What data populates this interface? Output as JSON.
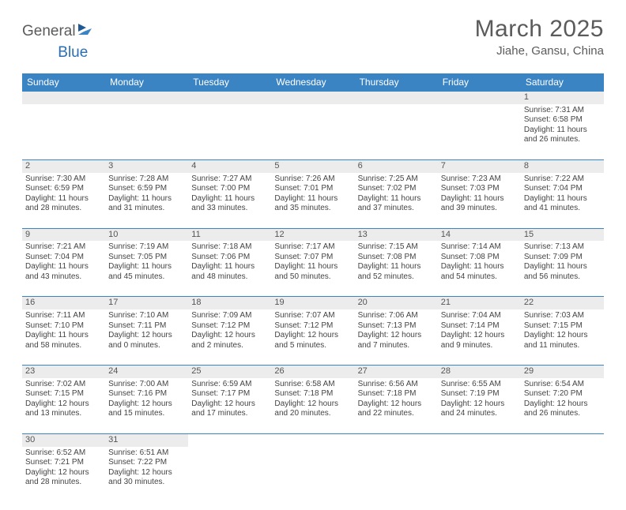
{
  "logo": {
    "part1": "General",
    "part2": "Blue"
  },
  "title": "March 2025",
  "location": "Jiahe, Gansu, China",
  "colors": {
    "header_bg": "#3b84c4",
    "header_text": "#ffffff",
    "border": "#3b84c4",
    "daynum_bg": "#ececec",
    "text": "#444444",
    "title_text": "#5b5b5b",
    "logo_gray": "#5b5b5b",
    "logo_blue": "#2a6fb5"
  },
  "typography": {
    "title_fontsize": 30,
    "location_fontsize": 15,
    "header_fontsize": 12,
    "cell_fontsize": 10,
    "daynum_fontsize": 11
  },
  "dayNames": [
    "Sunday",
    "Monday",
    "Tuesday",
    "Wednesday",
    "Thursday",
    "Friday",
    "Saturday"
  ],
  "weeks": [
    [
      null,
      null,
      null,
      null,
      null,
      null,
      {
        "n": "1",
        "sr": "Sunrise: 7:31 AM",
        "ss": "Sunset: 6:58 PM",
        "dl": "Daylight: 11 hours and 26 minutes."
      }
    ],
    [
      {
        "n": "2",
        "sr": "Sunrise: 7:30 AM",
        "ss": "Sunset: 6:59 PM",
        "dl": "Daylight: 11 hours and 28 minutes."
      },
      {
        "n": "3",
        "sr": "Sunrise: 7:28 AM",
        "ss": "Sunset: 6:59 PM",
        "dl": "Daylight: 11 hours and 31 minutes."
      },
      {
        "n": "4",
        "sr": "Sunrise: 7:27 AM",
        "ss": "Sunset: 7:00 PM",
        "dl": "Daylight: 11 hours and 33 minutes."
      },
      {
        "n": "5",
        "sr": "Sunrise: 7:26 AM",
        "ss": "Sunset: 7:01 PM",
        "dl": "Daylight: 11 hours and 35 minutes."
      },
      {
        "n": "6",
        "sr": "Sunrise: 7:25 AM",
        "ss": "Sunset: 7:02 PM",
        "dl": "Daylight: 11 hours and 37 minutes."
      },
      {
        "n": "7",
        "sr": "Sunrise: 7:23 AM",
        "ss": "Sunset: 7:03 PM",
        "dl": "Daylight: 11 hours and 39 minutes."
      },
      {
        "n": "8",
        "sr": "Sunrise: 7:22 AM",
        "ss": "Sunset: 7:04 PM",
        "dl": "Daylight: 11 hours and 41 minutes."
      }
    ],
    [
      {
        "n": "9",
        "sr": "Sunrise: 7:21 AM",
        "ss": "Sunset: 7:04 PM",
        "dl": "Daylight: 11 hours and 43 minutes."
      },
      {
        "n": "10",
        "sr": "Sunrise: 7:19 AM",
        "ss": "Sunset: 7:05 PM",
        "dl": "Daylight: 11 hours and 45 minutes."
      },
      {
        "n": "11",
        "sr": "Sunrise: 7:18 AM",
        "ss": "Sunset: 7:06 PM",
        "dl": "Daylight: 11 hours and 48 minutes."
      },
      {
        "n": "12",
        "sr": "Sunrise: 7:17 AM",
        "ss": "Sunset: 7:07 PM",
        "dl": "Daylight: 11 hours and 50 minutes."
      },
      {
        "n": "13",
        "sr": "Sunrise: 7:15 AM",
        "ss": "Sunset: 7:08 PM",
        "dl": "Daylight: 11 hours and 52 minutes."
      },
      {
        "n": "14",
        "sr": "Sunrise: 7:14 AM",
        "ss": "Sunset: 7:08 PM",
        "dl": "Daylight: 11 hours and 54 minutes."
      },
      {
        "n": "15",
        "sr": "Sunrise: 7:13 AM",
        "ss": "Sunset: 7:09 PM",
        "dl": "Daylight: 11 hours and 56 minutes."
      }
    ],
    [
      {
        "n": "16",
        "sr": "Sunrise: 7:11 AM",
        "ss": "Sunset: 7:10 PM",
        "dl": "Daylight: 11 hours and 58 minutes."
      },
      {
        "n": "17",
        "sr": "Sunrise: 7:10 AM",
        "ss": "Sunset: 7:11 PM",
        "dl": "Daylight: 12 hours and 0 minutes."
      },
      {
        "n": "18",
        "sr": "Sunrise: 7:09 AM",
        "ss": "Sunset: 7:12 PM",
        "dl": "Daylight: 12 hours and 2 minutes."
      },
      {
        "n": "19",
        "sr": "Sunrise: 7:07 AM",
        "ss": "Sunset: 7:12 PM",
        "dl": "Daylight: 12 hours and 5 minutes."
      },
      {
        "n": "20",
        "sr": "Sunrise: 7:06 AM",
        "ss": "Sunset: 7:13 PM",
        "dl": "Daylight: 12 hours and 7 minutes."
      },
      {
        "n": "21",
        "sr": "Sunrise: 7:04 AM",
        "ss": "Sunset: 7:14 PM",
        "dl": "Daylight: 12 hours and 9 minutes."
      },
      {
        "n": "22",
        "sr": "Sunrise: 7:03 AM",
        "ss": "Sunset: 7:15 PM",
        "dl": "Daylight: 12 hours and 11 minutes."
      }
    ],
    [
      {
        "n": "23",
        "sr": "Sunrise: 7:02 AM",
        "ss": "Sunset: 7:15 PM",
        "dl": "Daylight: 12 hours and 13 minutes."
      },
      {
        "n": "24",
        "sr": "Sunrise: 7:00 AM",
        "ss": "Sunset: 7:16 PM",
        "dl": "Daylight: 12 hours and 15 minutes."
      },
      {
        "n": "25",
        "sr": "Sunrise: 6:59 AM",
        "ss": "Sunset: 7:17 PM",
        "dl": "Daylight: 12 hours and 17 minutes."
      },
      {
        "n": "26",
        "sr": "Sunrise: 6:58 AM",
        "ss": "Sunset: 7:18 PM",
        "dl": "Daylight: 12 hours and 20 minutes."
      },
      {
        "n": "27",
        "sr": "Sunrise: 6:56 AM",
        "ss": "Sunset: 7:18 PM",
        "dl": "Daylight: 12 hours and 22 minutes."
      },
      {
        "n": "28",
        "sr": "Sunrise: 6:55 AM",
        "ss": "Sunset: 7:19 PM",
        "dl": "Daylight: 12 hours and 24 minutes."
      },
      {
        "n": "29",
        "sr": "Sunrise: 6:54 AM",
        "ss": "Sunset: 7:20 PM",
        "dl": "Daylight: 12 hours and 26 minutes."
      }
    ],
    [
      {
        "n": "30",
        "sr": "Sunrise: 6:52 AM",
        "ss": "Sunset: 7:21 PM",
        "dl": "Daylight: 12 hours and 28 minutes."
      },
      {
        "n": "31",
        "sr": "Sunrise: 6:51 AM",
        "ss": "Sunset: 7:22 PM",
        "dl": "Daylight: 12 hours and 30 minutes."
      },
      null,
      null,
      null,
      null,
      null
    ]
  ]
}
